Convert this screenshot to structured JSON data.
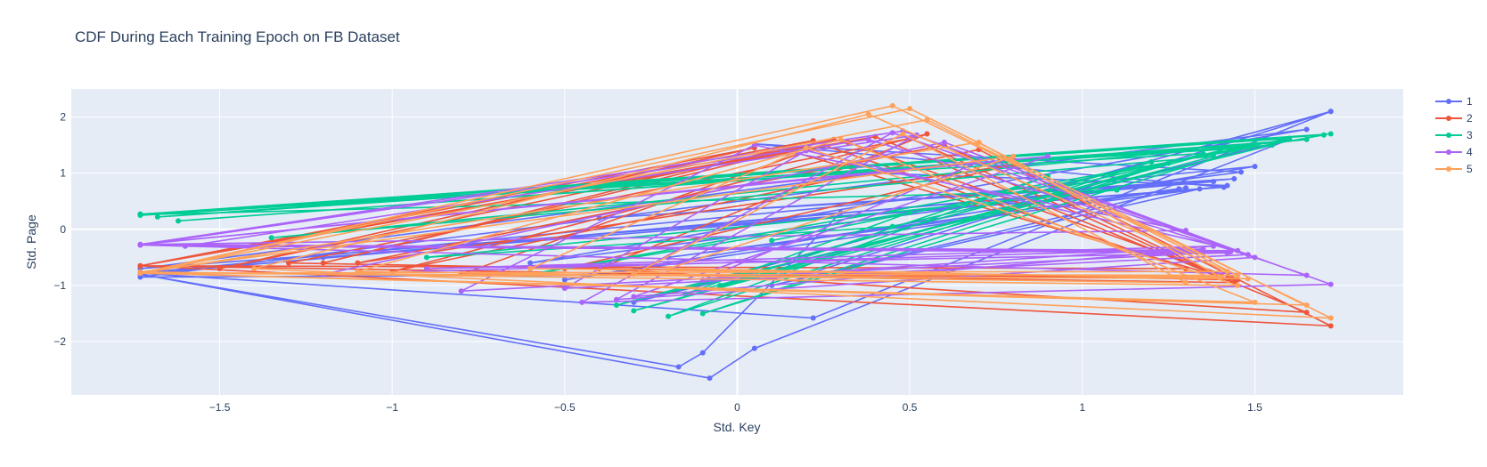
{
  "chart_data": {
    "type": "line",
    "title": "CDF During Each Training Epoch on FB Dataset",
    "xlabel": "Std. Key",
    "ylabel": "Std. Page",
    "xlim": [
      -1.93,
      1.93
    ],
    "ylim": [
      -2.95,
      2.5
    ],
    "xticks": [
      -1.5,
      -1,
      -0.5,
      0,
      0.5,
      1,
      1.5
    ],
    "xtick_labels": [
      "−1.5",
      "−1",
      "−0.5",
      "0",
      "0.5",
      "1",
      "1.5"
    ],
    "yticks": [
      -2,
      -1,
      0,
      1,
      2
    ],
    "ytick_labels": [
      "−2",
      "−1",
      "0",
      "1",
      "2"
    ],
    "grid": true,
    "legend_position": "top-right",
    "series": [
      {
        "name": "1",
        "color": "#636efa",
        "x": [
          1.72,
          0.2,
          -1.73,
          1.65,
          -0.6,
          1.46,
          0.05,
          1.41,
          -1.2,
          1.38,
          -0.4,
          1.44,
          -1.73,
          -0.17,
          -0.1,
          0.3,
          -1.73,
          -0.08,
          0.05,
          1.6,
          -0.3,
          1.72,
          0.22,
          -1.73,
          1.5,
          -0.5,
          1.28,
          0.1,
          1.34,
          -1.73,
          0.4,
          1.42,
          -0.2,
          1.3
        ],
        "y": [
          2.1,
          -0.8,
          -0.85,
          1.78,
          -0.6,
          1.02,
          1.52,
          0.75,
          -0.5,
          0.85,
          0.2,
          0.9,
          -0.8,
          -2.45,
          -2.2,
          0.3,
          -0.8,
          -2.65,
          -2.12,
          1.6,
          -1.3,
          2.1,
          -1.58,
          -0.78,
          1.12,
          -0.9,
          0.72,
          -1.0,
          0.72,
          -0.7,
          1.0,
          0.78,
          -0.5,
          0.74
        ]
      },
      {
        "name": "2",
        "color": "#ef553b",
        "x": [
          -1.73,
          0.05,
          -1.5,
          0.28,
          -1.2,
          0.22,
          -1.73,
          0.4,
          1.65,
          -0.4,
          0.55,
          -1.0,
          0.7,
          1.72,
          -1.73,
          0.32,
          1.45,
          -1.3,
          0.5,
          1.4,
          -0.8,
          0.25,
          1.3,
          -1.73,
          0.15,
          1.42,
          -0.5,
          0.8,
          -1.1,
          0.6,
          1.44,
          -1.73
        ],
        "y": [
          -0.65,
          1.45,
          -0.7,
          1.6,
          -0.6,
          1.58,
          -0.65,
          1.65,
          -1.48,
          -0.7,
          1.7,
          -0.75,
          1.42,
          -1.72,
          -0.65,
          1.55,
          -0.9,
          -0.6,
          1.62,
          -0.85,
          -0.8,
          1.5,
          -0.7,
          -0.65,
          1.4,
          -0.88,
          -0.7,
          1.15,
          -0.6,
          1.5,
          -0.95,
          -0.65
        ]
      },
      {
        "name": "3",
        "color": "#00cc96",
        "x": [
          -1.73,
          1.72,
          -1.68,
          1.5,
          -1.62,
          1.65,
          -1.35,
          1.38,
          -0.3,
          1.25,
          -0.1,
          1.48,
          -1.73,
          1.35,
          -0.05,
          0.9,
          -0.2,
          1.2,
          -0.35,
          1.55,
          -1.73,
          1.7,
          -0.6,
          0.5,
          -0.15,
          1.4,
          0.45,
          -0.9,
          1.1,
          -1.73,
          1.6,
          0.1
        ],
        "y": [
          0.27,
          1.7,
          0.22,
          1.52,
          0.15,
          1.6,
          -0.15,
          1.3,
          -1.45,
          1.18,
          -1.5,
          1.45,
          0.27,
          1.35,
          -1.0,
          0.95,
          -1.55,
          1.2,
          -1.35,
          1.5,
          0.25,
          1.68,
          -0.8,
          0.3,
          -1.15,
          1.4,
          0.05,
          -0.5,
          0.7,
          0.26,
          1.62,
          -0.2
        ]
      },
      {
        "name": "4",
        "color": "#ab63fa",
        "x": [
          -1.73,
          0.48,
          1.72,
          -0.45,
          0.45,
          1.65,
          -1.73,
          0.38,
          1.5,
          -0.35,
          0.52,
          -1.6,
          1.43,
          -0.8,
          0.05,
          1.3,
          -1.73,
          0.9,
          -0.3,
          1.35,
          -1.2,
          0.6,
          1.48,
          -0.5,
          0.2,
          1.45,
          -1.73,
          0.7,
          -0.1,
          1.38,
          -0.9,
          1.42,
          -1.73
        ],
        "y": [
          -0.27,
          1.75,
          -0.98,
          -1.3,
          1.72,
          -0.82,
          -0.28,
          1.6,
          -0.5,
          -1.25,
          1.68,
          -0.3,
          -0.4,
          -1.1,
          1.5,
          -0.02,
          -0.27,
          1.3,
          -1.2,
          -0.35,
          -0.8,
          1.55,
          -0.45,
          -1.05,
          1.4,
          -0.38,
          -0.27,
          1.2,
          -0.9,
          -0.3,
          -0.7,
          -0.42,
          -0.28
        ]
      },
      {
        "name": "5",
        "color": "#ffa15a",
        "x": [
          -1.73,
          0.45,
          1.65,
          -1.73,
          0.5,
          1.72,
          -1.4,
          0.38,
          1.42,
          -1.73,
          0.55,
          1.45,
          -0.3,
          0.48,
          1.3,
          -1.1,
          0.3,
          1.5,
          -1.73,
          0.7,
          1.4,
          -0.6,
          0.2,
          1.45,
          -1.73,
          0.8,
          -0.2,
          1.48,
          -1.73
        ],
        "y": [
          -0.78,
          2.2,
          -1.35,
          -0.78,
          2.15,
          -1.58,
          -0.7,
          2.05,
          -0.75,
          -0.78,
          1.95,
          -0.82,
          -0.8,
          1.7,
          -0.95,
          -0.75,
          1.6,
          -1.3,
          -0.78,
          1.55,
          -0.85,
          -0.7,
          1.45,
          -1.0,
          -0.76,
          1.3,
          -0.7,
          -0.88,
          -0.78
        ]
      }
    ]
  }
}
